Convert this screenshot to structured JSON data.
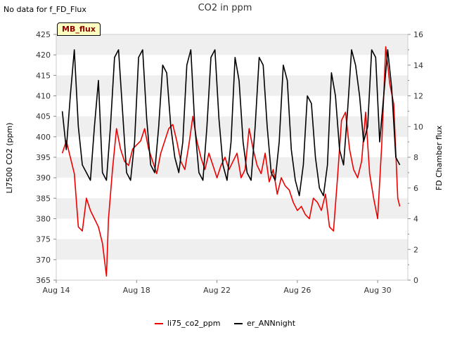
{
  "header": {
    "nodata_text": "No data for f_FD_Flux",
    "title": "CO2 in ppm",
    "badge": "MB_flux"
  },
  "colors": {
    "li75_co2_ppm": "#ee0000",
    "er_ANNnight": "#000000",
    "band": "#efefef",
    "axis": "#888888"
  },
  "chart_data": {
    "type": "line",
    "title": "CO2 in ppm",
    "ylabel": "LI7500 CO2 (ppm)",
    "y2label": "FD Chamber flux",
    "xlabel": "",
    "xlim": [
      14,
      31.5
    ],
    "ylim": [
      365,
      425
    ],
    "y2lim": [
      0,
      16
    ],
    "xticks": [
      14,
      18,
      22,
      26,
      30
    ],
    "xtick_labels": [
      "Aug 14",
      "Aug 18",
      "Aug 22",
      "Aug 26",
      "Aug 30"
    ],
    "yticks": [
      365,
      370,
      375,
      380,
      385,
      390,
      395,
      400,
      405,
      410,
      415,
      420,
      425
    ],
    "y2ticks": [
      0,
      2,
      4,
      6,
      8,
      10,
      12,
      14,
      16
    ],
    "legend": [
      "li75_co2_ppm",
      "er_ANNnight"
    ],
    "legend_position": "bottom",
    "series": [
      {
        "name": "li75_co2_ppm",
        "axis": "left",
        "x": [
          14.3,
          14.5,
          14.7,
          14.9,
          15.1,
          15.3,
          15.5,
          15.7,
          15.9,
          16.1,
          16.3,
          16.5,
          16.6,
          16.8,
          17.0,
          17.2,
          17.4,
          17.6,
          17.8,
          18.0,
          18.2,
          18.4,
          18.6,
          18.8,
          19.0,
          19.2,
          19.4,
          19.6,
          19.8,
          20.0,
          20.2,
          20.4,
          20.6,
          20.8,
          21.0,
          21.2,
          21.4,
          21.6,
          21.8,
          22.0,
          22.2,
          22.4,
          22.6,
          22.8,
          23.0,
          23.2,
          23.4,
          23.6,
          23.8,
          24.0,
          24.2,
          24.4,
          24.6,
          24.8,
          25.0,
          25.2,
          25.4,
          25.6,
          25.8,
          26.0,
          26.2,
          26.4,
          26.6,
          26.8,
          27.0,
          27.2,
          27.4,
          27.6,
          27.8,
          28.0,
          28.2,
          28.4,
          28.6,
          28.8,
          29.0,
          29.2,
          29.4,
          29.6,
          29.8,
          30.0,
          30.2,
          30.4,
          30.6,
          30.8,
          31.0,
          31.1
        ],
        "values": [
          396,
          399,
          395,
          391,
          378,
          377,
          385,
          382,
          380,
          378,
          374,
          366,
          380,
          392,
          402,
          397,
          394,
          393,
          397,
          398,
          399,
          402,
          397,
          394,
          391,
          396,
          399,
          402,
          403,
          399,
          394,
          392,
          398,
          405,
          399,
          395,
          392,
          396,
          393,
          390,
          393,
          395,
          392,
          394,
          396,
          390,
          392,
          402,
          397,
          393,
          391,
          396,
          389,
          392,
          386,
          390,
          388,
          387,
          384,
          382,
          383,
          381,
          380,
          385,
          384,
          382,
          386,
          378,
          377,
          390,
          404,
          406,
          397,
          392,
          390,
          394,
          406,
          391,
          385,
          380,
          398,
          422,
          413,
          408,
          385,
          383
        ]
      },
      {
        "name": "er_ANNnight",
        "axis": "right",
        "x": [
          14.3,
          14.5,
          14.7,
          14.9,
          15.1,
          15.3,
          15.5,
          15.7,
          15.9,
          16.1,
          16.3,
          16.5,
          16.7,
          16.9,
          17.1,
          17.3,
          17.5,
          17.7,
          17.9,
          18.1,
          18.3,
          18.5,
          18.7,
          18.9,
          19.1,
          19.3,
          19.5,
          19.7,
          19.9,
          20.1,
          20.3,
          20.5,
          20.7,
          20.9,
          21.1,
          21.3,
          21.5,
          21.7,
          21.9,
          22.1,
          22.3,
          22.5,
          22.7,
          22.9,
          23.1,
          23.3,
          23.5,
          23.7,
          23.9,
          24.1,
          24.3,
          24.5,
          24.7,
          24.9,
          25.1,
          25.3,
          25.5,
          25.7,
          25.9,
          26.1,
          26.3,
          26.5,
          26.7,
          26.9,
          27.1,
          27.3,
          27.5,
          27.7,
          27.9,
          28.1,
          28.3,
          28.5,
          28.7,
          28.9,
          29.1,
          29.3,
          29.5,
          29.7,
          29.9,
          30.1,
          30.3,
          30.5,
          30.7,
          30.9,
          31.1
        ],
        "values": [
          11,
          8.5,
          12,
          15,
          10,
          7.5,
          7,
          6.5,
          10,
          13,
          7,
          6.5,
          10,
          14.5,
          15,
          11,
          7,
          6.5,
          9,
          14.5,
          15,
          10.5,
          7.5,
          7,
          10,
          14,
          13.5,
          10,
          8,
          7,
          9,
          14,
          15,
          10,
          7,
          6.5,
          10,
          14.5,
          15,
          10.5,
          7.5,
          6.5,
          9,
          14.5,
          13,
          9,
          7,
          6.5,
          10,
          14.5,
          14,
          10,
          7,
          6.5,
          9,
          14,
          13,
          8.5,
          6.5,
          5.5,
          7.5,
          12,
          11.5,
          8,
          6,
          5.5,
          7.5,
          13.5,
          12,
          8.5,
          7.5,
          11,
          15,
          14,
          12,
          9,
          10,
          15,
          14.5,
          9,
          12,
          15,
          12.5,
          8,
          7.5
        ]
      }
    ]
  }
}
